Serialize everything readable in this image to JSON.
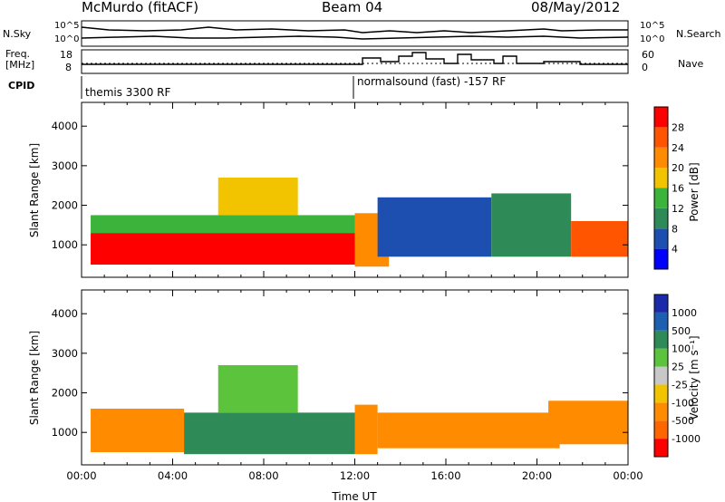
{
  "header": {
    "station": "McMurdo (fitACF)",
    "beam": "Beam 04",
    "date": "08/May/2012"
  },
  "top_panels": {
    "nsky_label": "N.Sky",
    "nsky_ticks": [
      "10^5",
      "10^0"
    ],
    "nsearch_label": "N.Search",
    "nsearch_ticks": [
      "10^5",
      "10^0"
    ],
    "freq_label_1": "Freq.",
    "freq_label_2": "[MHz]",
    "freq_ticks": [
      "18",
      "8"
    ],
    "nave_label": "Nave",
    "nave_ticks": [
      "60",
      "0"
    ],
    "cpid_label": "CPID",
    "cpid_segments": [
      {
        "label": "themis 3300 RF",
        "start_hour": 0
      },
      {
        "label": "normalsound (fast) -157 RF",
        "start_hour": 12
      }
    ]
  },
  "colors": {
    "power": [
      "#0000ff",
      "#1d4fb0",
      "#2e8b57",
      "#3cb43c",
      "#f2c400",
      "#ff8c00",
      "#ff5500",
      "#ff0000"
    ],
    "velocity": [
      "#ff0000",
      "#ff6600",
      "#ff8c00",
      "#f2c400",
      "#c8c8c8",
      "#5cc43c",
      "#2e8b57",
      "#1d5fb0",
      "#1b2aa8"
    ]
  },
  "chart_data": [
    {
      "type": "heatmap",
      "quantity": "Power",
      "xlabel": "",
      "ylabel": "Slant Range [km]",
      "ylim": [
        180,
        4600
      ],
      "xlim_hours": [
        0,
        24
      ],
      "y_ticks": [
        "1000",
        "2000",
        "3000",
        "4000"
      ],
      "colorbar_label": "Power [dB]",
      "colorbar_ticks": [
        "4",
        "8",
        "12",
        "16",
        "20",
        "24",
        "28"
      ],
      "regions": [
        {
          "x": [
            0.4,
            12.0
          ],
          "y": [
            500,
            1300
          ],
          "level": 7
        },
        {
          "x": [
            0.4,
            12.0
          ],
          "y": [
            1300,
            1750
          ],
          "level": 3
        },
        {
          "x": [
            6.0,
            9.5
          ],
          "y": [
            1750,
            2700
          ],
          "level": 4
        },
        {
          "x": [
            12.0,
            13.5
          ],
          "y": [
            450,
            1800
          ],
          "level": 5
        },
        {
          "x": [
            13.0,
            18.0
          ],
          "y": [
            700,
            2200
          ],
          "level": 1
        },
        {
          "x": [
            18.0,
            21.5
          ],
          "y": [
            700,
            2300
          ],
          "level": 2
        },
        {
          "x": [
            21.5,
            24.0
          ],
          "y": [
            700,
            1600
          ],
          "level": 6
        }
      ]
    },
    {
      "type": "heatmap",
      "quantity": "Velocity",
      "xlabel": "Time UT",
      "ylabel": "Slant Range [km]",
      "ylim": [
        180,
        4600
      ],
      "xlim_hours": [
        0,
        24
      ],
      "x_ticks": [
        "00:00",
        "04:00",
        "08:00",
        "12:00",
        "16:00",
        "20:00",
        "00:00"
      ],
      "y_ticks": [
        "1000",
        "2000",
        "3000",
        "4000"
      ],
      "colorbar_label": "Velocity [m s⁻¹]",
      "colorbar_ticks": [
        "-1000",
        "-500",
        "-100",
        "-25",
        "25",
        "100",
        "500",
        "1000"
      ],
      "regions": [
        {
          "x": [
            0.4,
            4.5
          ],
          "y": [
            500,
            1600
          ],
          "level": 2
        },
        {
          "x": [
            4.5,
            12.0
          ],
          "y": [
            450,
            1500
          ],
          "level": 6
        },
        {
          "x": [
            6.0,
            9.5
          ],
          "y": [
            1500,
            2700
          ],
          "level": 5
        },
        {
          "x": [
            12.0,
            13.0
          ],
          "y": [
            450,
            1700
          ],
          "level": 2
        },
        {
          "x": [
            13.0,
            21.0
          ],
          "y": [
            600,
            1500
          ],
          "level": 2
        },
        {
          "x": [
            20.5,
            24.0
          ],
          "y": [
            700,
            1800
          ],
          "level": 2
        }
      ]
    }
  ]
}
